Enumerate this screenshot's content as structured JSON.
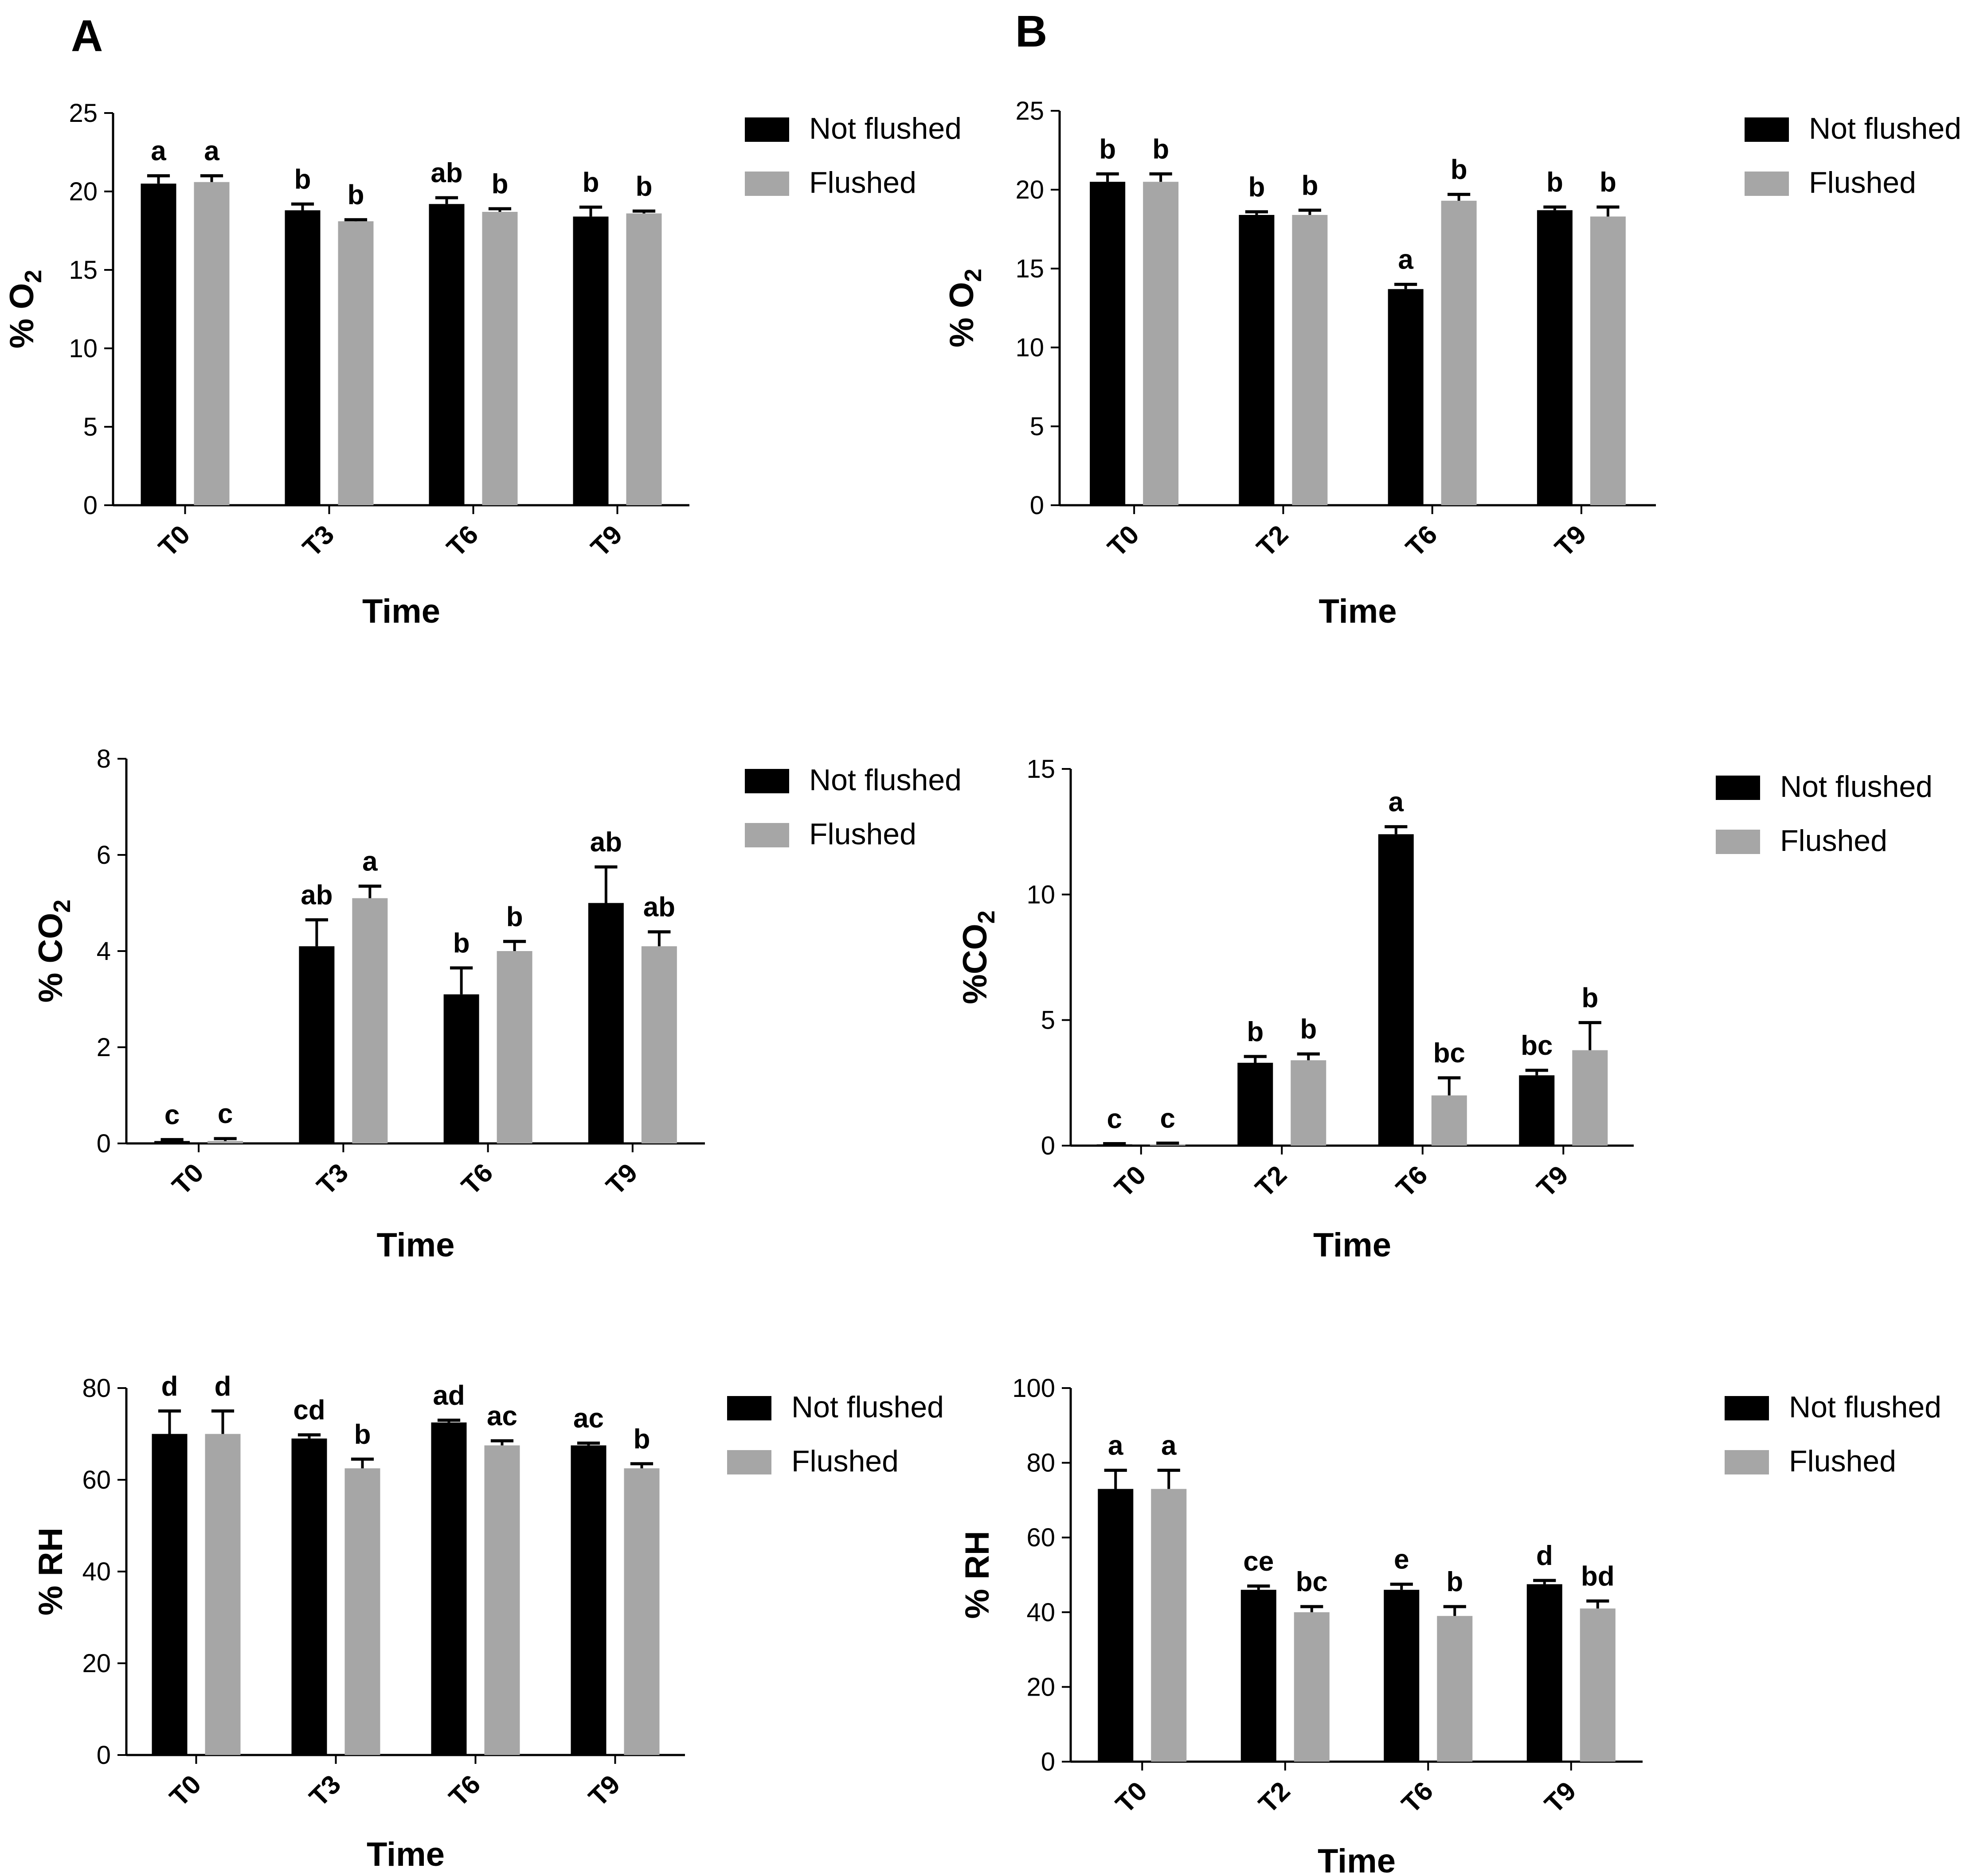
{
  "panels": [
    {
      "id": "A",
      "label": "A"
    },
    {
      "id": "B",
      "label": "B"
    }
  ],
  "colors": {
    "not_flushed": "#000000",
    "flushed": "#a6a6a6"
  },
  "chart_data": [
    {
      "panel": "A",
      "type": "bar",
      "categories": [
        "T0",
        "T3",
        "T6",
        "T9"
      ],
      "xlabel": "Time",
      "ylabel": "% O",
      "ylabel_sub": "2",
      "ylim": [
        0,
        25
      ],
      "yticks": [
        0,
        5,
        10,
        15,
        20,
        25
      ],
      "series": [
        {
          "name": "Not flushed",
          "values": [
            20.5,
            18.8,
            19.2,
            18.4
          ],
          "errors": [
            0.5,
            0.4,
            0.4,
            0.6
          ],
          "sig": [
            "a",
            "b",
            "ab",
            "b"
          ]
        },
        {
          "name": "Flushed",
          "values": [
            20.6,
            18.1,
            18.7,
            18.6
          ],
          "errors": [
            0.4,
            0.1,
            0.2,
            0.15
          ],
          "sig": [
            "a",
            "b",
            "b",
            "b"
          ]
        }
      ]
    },
    {
      "panel": "B",
      "type": "bar",
      "categories": [
        "T0",
        "T2",
        "T6",
        "T9"
      ],
      "xlabel": "Time",
      "ylabel": "% O",
      "ylabel_sub": "2",
      "ylim": [
        0,
        25
      ],
      "yticks": [
        0,
        5,
        10,
        15,
        20,
        25
      ],
      "series": [
        {
          "name": "Not flushed",
          "values": [
            20.5,
            18.4,
            13.7,
            18.7
          ],
          "errors": [
            0.5,
            0.2,
            0.3,
            0.2
          ],
          "sig": [
            "b",
            "b",
            "a",
            "b"
          ]
        },
        {
          "name": "Flushed",
          "values": [
            20.5,
            18.4,
            19.3,
            18.3
          ],
          "errors": [
            0.5,
            0.3,
            0.4,
            0.6
          ],
          "sig": [
            "b",
            "b",
            "b",
            "b"
          ]
        }
      ]
    },
    {
      "panel": "A",
      "type": "bar",
      "categories": [
        "T0",
        "T3",
        "T6",
        "T9"
      ],
      "xlabel": "Time",
      "ylabel": "% CO",
      "ylabel_sub": "2",
      "ylim": [
        0,
        8
      ],
      "yticks": [
        0,
        2,
        4,
        6,
        8
      ],
      "series": [
        {
          "name": "Not flushed",
          "values": [
            0.05,
            4.1,
            3.1,
            5.0
          ],
          "errors": [
            0.03,
            0.55,
            0.55,
            0.75
          ],
          "sig": [
            "c",
            "ab",
            "b",
            "ab"
          ]
        },
        {
          "name": "Flushed",
          "values": [
            0.05,
            5.1,
            4.0,
            4.1
          ],
          "errors": [
            0.05,
            0.25,
            0.2,
            0.3
          ],
          "sig": [
            "c",
            "a",
            "b",
            "ab"
          ]
        }
      ]
    },
    {
      "panel": "B",
      "type": "bar",
      "categories": [
        "T0",
        "T2",
        "T6",
        "T9"
      ],
      "xlabel": "Time",
      "ylabel": "%CO",
      "ylabel_sub": "2",
      "ylim": [
        0,
        15
      ],
      "yticks": [
        0,
        5,
        10,
        15
      ],
      "series": [
        {
          "name": "Not flushed",
          "values": [
            0.05,
            3.3,
            12.4,
            2.8
          ],
          "errors": [
            0.03,
            0.25,
            0.3,
            0.2
          ],
          "sig": [
            "c",
            "b",
            "a",
            "bc"
          ]
        },
        {
          "name": "Flushed",
          "values": [
            0.05,
            3.4,
            2.0,
            3.8
          ],
          "errors": [
            0.05,
            0.25,
            0.7,
            1.1
          ],
          "sig": [
            "c",
            "b",
            "bc",
            "b"
          ]
        }
      ]
    },
    {
      "panel": "A",
      "type": "bar",
      "categories": [
        "T0",
        "T3",
        "T6",
        "T9"
      ],
      "xlabel": "Time",
      "ylabel": "% RH",
      "ylabel_sub": "",
      "ylim": [
        0,
        80
      ],
      "yticks": [
        0,
        20,
        40,
        60,
        80
      ],
      "series": [
        {
          "name": "Not flushed",
          "values": [
            70,
            69,
            72.5,
            67.5
          ],
          "errors": [
            5,
            0.8,
            0.5,
            0.5
          ],
          "sig": [
            "d",
            "cd",
            "ad",
            "ac"
          ]
        },
        {
          "name": "Flushed",
          "values": [
            70,
            62.5,
            67.5,
            62.5
          ],
          "errors": [
            5,
            2,
            1,
            1
          ],
          "sig": [
            "d",
            "b",
            "ac",
            "b"
          ]
        }
      ]
    },
    {
      "panel": "B",
      "type": "bar",
      "categories": [
        "T0",
        "T2",
        "T6",
        "T9"
      ],
      "xlabel": "Time",
      "ylabel": "% RH",
      "ylabel_sub": "",
      "ylim": [
        0,
        100
      ],
      "yticks": [
        0,
        20,
        40,
        60,
        80,
        100
      ],
      "series": [
        {
          "name": "Not flushed",
          "values": [
            73,
            46,
            46,
            47.5
          ],
          "errors": [
            5,
            1,
            1.5,
            1
          ],
          "sig": [
            "a",
            "ce",
            "e",
            "d"
          ]
        },
        {
          "name": "Flushed",
          "values": [
            73,
            40,
            39,
            41
          ],
          "errors": [
            5,
            1.5,
            2.5,
            2
          ],
          "sig": [
            "a",
            "bc",
            "b",
            "bd"
          ]
        }
      ]
    }
  ]
}
